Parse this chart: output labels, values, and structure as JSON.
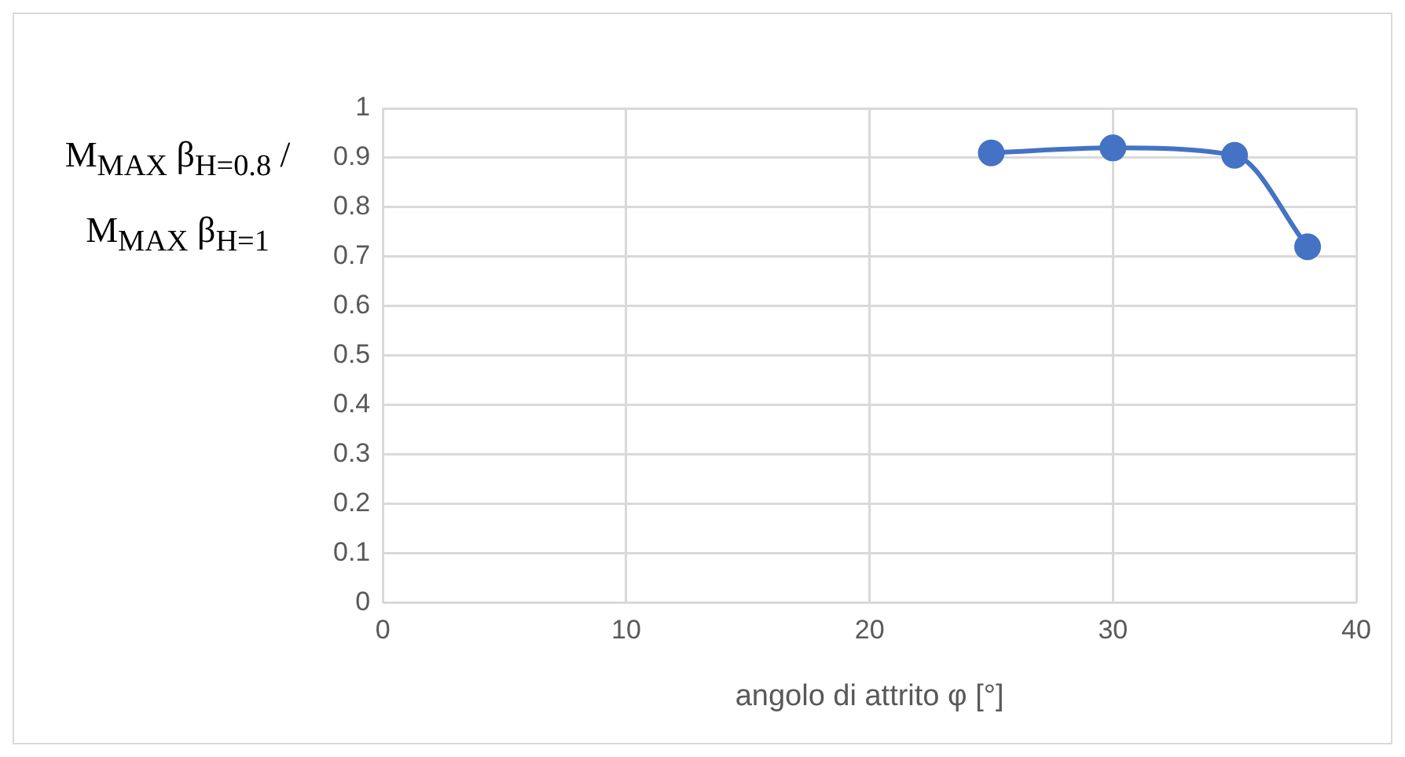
{
  "chart_data": {
    "type": "line",
    "xlabel": "angolo di attrito φ [°]",
    "ylabel": "M$_{MAX}$ β$_{H=0.8}$ / M$_{MAX}$ β$_{H=1}$",
    "x": [
      25,
      30,
      35,
      38
    ],
    "series": [
      {
        "color": "#4472c4",
        "values": [
          0.91,
          0.92,
          0.905,
          0.72
        ]
      }
    ],
    "xlim": [
      0,
      40
    ],
    "xticks": [
      0,
      10,
      20,
      30,
      40
    ],
    "ylim": [
      0,
      1
    ],
    "yticks": [
      0,
      0.1,
      0.2,
      0.3,
      0.4,
      0.5,
      0.6,
      0.7,
      0.8,
      0.9,
      1
    ],
    "grid": true,
    "legend": false,
    "marker": "circle",
    "line_style": "solid"
  }
}
